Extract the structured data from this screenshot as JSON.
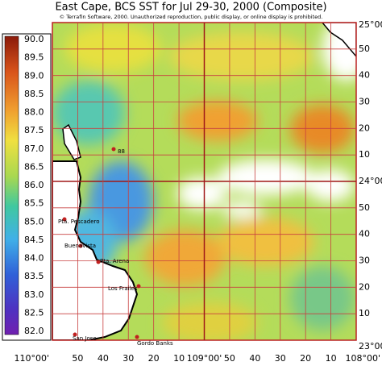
{
  "header": {
    "title": "East Cape, BCS SST for Jul 29-30, 2000 (Composite)",
    "copyright": "© Terrafin Software,  2000.  Unauthorized reproduction, public display, or online display is prohibited."
  },
  "colorbar": {
    "labels": [
      "90.0",
      "89.5",
      "89.0",
      "88.5",
      "88.0",
      "87.5",
      "87.0",
      "86.5",
      "86.0",
      "85.5",
      "85.0",
      "84.5",
      "84.0",
      "83.5",
      "83.0",
      "82.5",
      "82.0"
    ]
  },
  "lat_labels": [
    "25°00'",
    "50",
    "40",
    "30",
    "20",
    "10",
    "24°00'",
    "50",
    "40",
    "30",
    "20",
    "10",
    "23°00'"
  ],
  "lon_labels": [
    "110°00'",
    "50",
    "40",
    "30",
    "20",
    "10",
    "109°00'",
    "50",
    "40",
    "30",
    "20",
    "10",
    "108°00'"
  ],
  "places": [
    {
      "label": "88"
    },
    {
      "label": "Pta. Pescadero"
    },
    {
      "label": "Buenavista"
    },
    {
      "label": "Pta. Arena"
    },
    {
      "label": "Los Frailes"
    },
    {
      "label": "San Jose"
    },
    {
      "label": "Gordo Banks"
    }
  ]
}
